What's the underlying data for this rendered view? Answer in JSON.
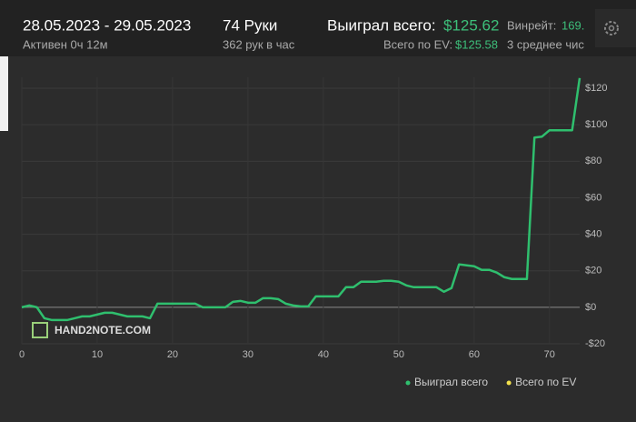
{
  "header": {
    "date_range": "28.05.2023 - 29.05.2023",
    "active": "Активен 0ч 12м",
    "hands": "74 Руки",
    "hands_rate": "362 рук в час",
    "won_label": "Выиграл всего:",
    "won_value": "$125.62",
    "winrate_label": "Винрейт:",
    "winrate_value": "169.",
    "ev_label": "Всего по EV:",
    "ev_value": "$125.58",
    "avg_label": "3 среднее чис"
  },
  "watermark": "HAND2NOTE.COM",
  "chart_data": {
    "type": "line",
    "x": [
      0,
      1,
      2,
      3,
      4,
      5,
      6,
      7,
      8,
      9,
      10,
      11,
      12,
      13,
      14,
      15,
      16,
      17,
      18,
      19,
      20,
      21,
      22,
      23,
      24,
      25,
      26,
      27,
      28,
      29,
      30,
      31,
      32,
      33,
      34,
      35,
      36,
      37,
      38,
      39,
      40,
      41,
      42,
      43,
      44,
      45,
      46,
      47,
      48,
      49,
      50,
      51,
      52,
      53,
      54,
      55,
      56,
      57,
      58,
      59,
      60,
      61,
      62,
      63,
      64,
      65,
      66,
      67,
      68,
      69,
      70,
      71,
      72,
      73,
      74
    ],
    "series": [
      {
        "name": "Выиграл всего",
        "color": "#2fbf6e",
        "values": [
          0,
          1,
          0,
          -6,
          -7,
          -7,
          -7,
          -6,
          -5,
          -5,
          -4,
          -3,
          -3,
          -4,
          -5,
          -5,
          -5,
          -6,
          2,
          2,
          2,
          2,
          2,
          2,
          0,
          0,
          0,
          0,
          3,
          3.5,
          2.5,
          2.5,
          5,
          5,
          4.5,
          2,
          1,
          0.5,
          0.5,
          6,
          6,
          6,
          6,
          11,
          11,
          14,
          14,
          14,
          14.5,
          14.5,
          14,
          12,
          11,
          11,
          11,
          11,
          8.5,
          10.5,
          23.5,
          23,
          22.5,
          20.5,
          20.5,
          19,
          16.5,
          15.5,
          15.5,
          15.5,
          93,
          93.5,
          97,
          97,
          97,
          97,
          125.62
        ]
      },
      {
        "name": "Всего по EV",
        "color": "#f2e14c"
      }
    ],
    "xlim": [
      0,
      74
    ],
    "xticks": [
      0,
      10,
      20,
      30,
      40,
      50,
      60,
      70
    ],
    "ylim": [
      -20,
      126
    ],
    "yticks": [
      {
        "value": -20,
        "label": "-$20"
      },
      {
        "value": 0,
        "label": "$0"
      },
      {
        "value": 20,
        "label": "$20"
      },
      {
        "value": 40,
        "label": "$40"
      },
      {
        "value": 60,
        "label": "$60"
      },
      {
        "value": 80,
        "label": "$80"
      },
      {
        "value": 100,
        "label": "$100"
      },
      {
        "value": 120,
        "label": "$120"
      }
    ],
    "grid": true
  }
}
